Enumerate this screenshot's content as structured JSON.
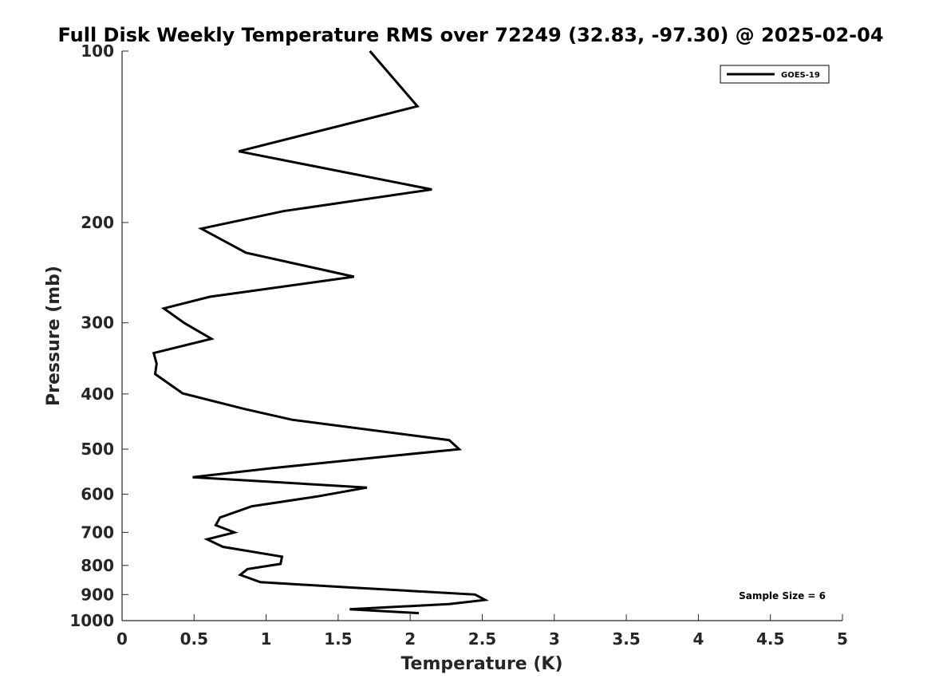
{
  "chart_data": {
    "type": "line",
    "title": "Full Disk Weekly Temperature RMS over 72249 (32.83, -97.30) @ 2025-02-04",
    "xlabel": "Temperature (K)",
    "ylabel": "Pressure (mb)",
    "xlim": [
      0,
      5
    ],
    "ylim": [
      100,
      1000
    ],
    "y_scale": "log",
    "y_direction": "reversed",
    "x_ticks": [
      "0",
      "0.5",
      "1",
      "1.5",
      "2",
      "2.5",
      "3",
      "3.5",
      "4",
      "4.5",
      "5"
    ],
    "y_ticks": [
      "100",
      "200",
      "300",
      "400",
      "500",
      "600",
      "700",
      "800",
      "900",
      "1000"
    ],
    "grid": false,
    "legend_position": "top-right",
    "series": [
      {
        "name": "GOES-19",
        "color": "#000000",
        "points": [
          [
            1.72,
            100
          ],
          [
            2.05,
            125
          ],
          [
            0.81,
            150
          ],
          [
            2.15,
            175
          ],
          [
            1.12,
            191
          ],
          [
            0.55,
            205
          ],
          [
            0.86,
            226
          ],
          [
            1.61,
            249
          ],
          [
            0.61,
            270
          ],
          [
            0.29,
            283
          ],
          [
            0.43,
            300
          ],
          [
            0.62,
            320
          ],
          [
            0.22,
            339
          ],
          [
            0.24,
            354
          ],
          [
            0.23,
            369
          ],
          [
            0.42,
            399
          ],
          [
            0.85,
            425
          ],
          [
            1.18,
            444
          ],
          [
            2.27,
            482
          ],
          [
            2.34,
            500
          ],
          [
            1.9,
            513
          ],
          [
            1.04,
            540
          ],
          [
            0.49,
            560
          ],
          [
            1.7,
            584
          ],
          [
            1.36,
            605
          ],
          [
            0.9,
            630
          ],
          [
            0.68,
            659
          ],
          [
            0.65,
            680
          ],
          [
            0.78,
            700
          ],
          [
            0.59,
            720
          ],
          [
            0.7,
            742
          ],
          [
            1.11,
            772
          ],
          [
            1.1,
            795
          ],
          [
            0.87,
            812
          ],
          [
            0.82,
            831
          ],
          [
            0.96,
            856
          ],
          [
            1.6,
            875
          ],
          [
            2.45,
            900
          ],
          [
            2.52,
            920
          ],
          [
            2.27,
            935
          ],
          [
            1.58,
            955
          ],
          [
            2.06,
            970
          ]
        ]
      }
    ],
    "annotation": "Sample Size = 6"
  }
}
